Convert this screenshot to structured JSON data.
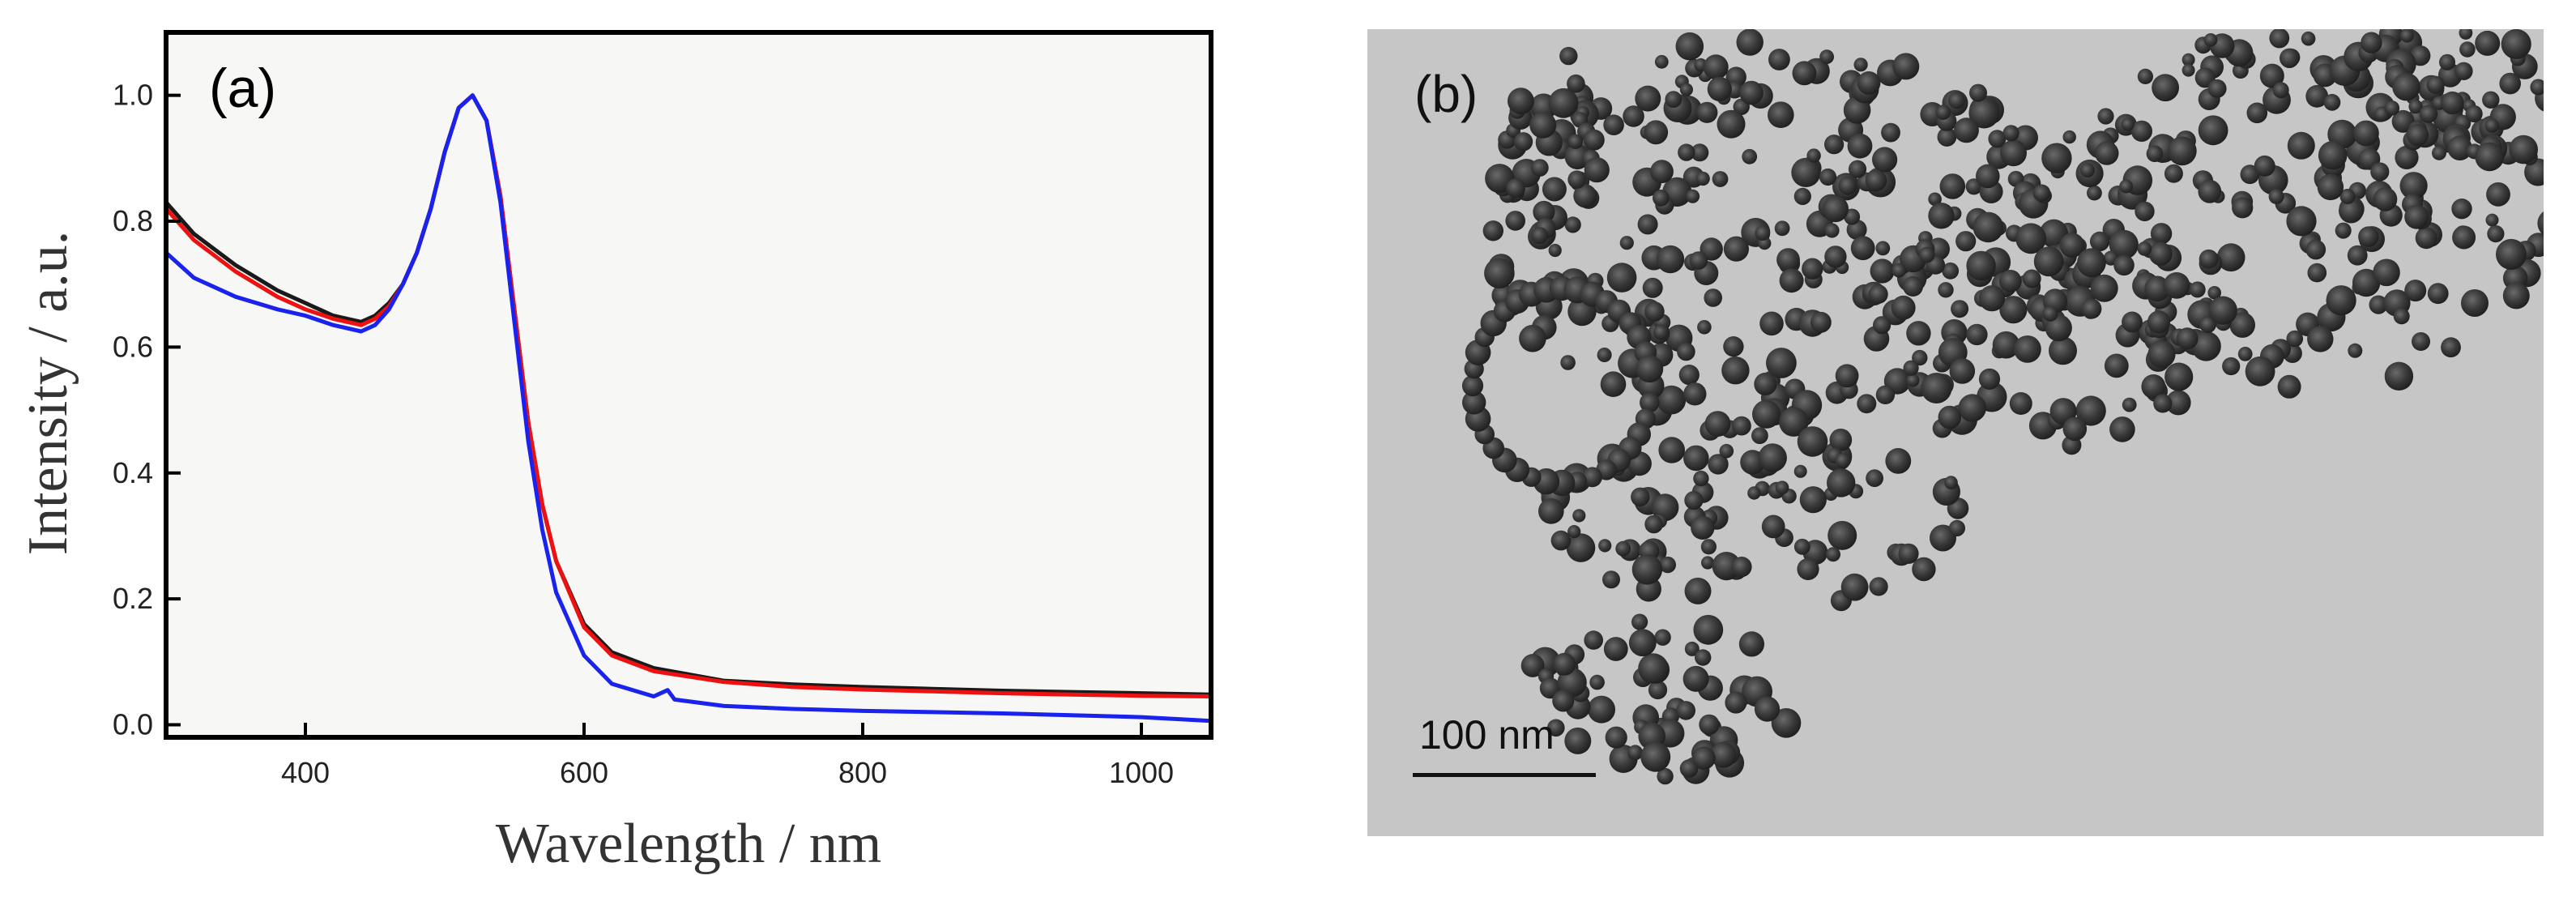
{
  "panel_a": {
    "label": "(a)",
    "xlabel": "Wavelength / nm",
    "ylabel": "Intensity / a.u."
  },
  "panel_b": {
    "label": "(b)",
    "scale_bar_label": "100 nm"
  },
  "colors": {
    "black_series": "#1a1a1a",
    "red_series": "#ee1111",
    "blue_series": "#1a22ee",
    "tem_background": "#c6c6c6",
    "particle": "#2a2a2a"
  },
  "chart_data": {
    "type": "line",
    "xlabel": "Wavelength / nm",
    "ylabel": "Intensity / a.u.",
    "xlim": [
      300,
      1050
    ],
    "ylim": [
      -0.02,
      1.1
    ],
    "xticks": [
      400,
      600,
      800,
      1000
    ],
    "yticks": [
      0.0,
      0.2,
      0.4,
      0.6,
      0.8,
      1.0
    ],
    "grid": false,
    "series": [
      {
        "color": "#1a1a1a",
        "x": [
          300,
          320,
          350,
          380,
          400,
          420,
          440,
          450,
          460,
          470,
          480,
          490,
          500,
          510,
          520,
          530,
          540,
          550,
          560,
          570,
          580,
          600,
          620,
          650,
          700,
          750,
          800,
          850,
          900,
          950,
          1000,
          1050
        ],
        "y": [
          0.83,
          0.78,
          0.73,
          0.69,
          0.67,
          0.65,
          0.64,
          0.65,
          0.67,
          0.7,
          0.75,
          0.82,
          0.91,
          0.98,
          1.0,
          0.96,
          0.84,
          0.66,
          0.48,
          0.35,
          0.26,
          0.16,
          0.115,
          0.09,
          0.07,
          0.064,
          0.06,
          0.057,
          0.054,
          0.052,
          0.05,
          0.048
        ]
      },
      {
        "color": "#ee1111",
        "x": [
          300,
          320,
          350,
          380,
          400,
          420,
          440,
          450,
          460,
          470,
          480,
          490,
          500,
          510,
          520,
          530,
          540,
          550,
          560,
          570,
          580,
          600,
          620,
          650,
          700,
          750,
          800,
          850,
          900,
          950,
          1000,
          1050
        ],
        "y": [
          0.82,
          0.77,
          0.72,
          0.68,
          0.66,
          0.645,
          0.635,
          0.645,
          0.665,
          0.7,
          0.75,
          0.82,
          0.91,
          0.98,
          1.0,
          0.96,
          0.84,
          0.66,
          0.48,
          0.35,
          0.26,
          0.155,
          0.11,
          0.085,
          0.068,
          0.06,
          0.056,
          0.053,
          0.05,
          0.048,
          0.046,
          0.045
        ]
      },
      {
        "color": "#1a22ee",
        "x": [
          300,
          320,
          350,
          380,
          400,
          420,
          440,
          450,
          460,
          470,
          480,
          490,
          500,
          510,
          520,
          530,
          540,
          550,
          560,
          570,
          580,
          600,
          620,
          650,
          660,
          665,
          700,
          750,
          800,
          850,
          900,
          950,
          1000,
          1050
        ],
        "y": [
          0.75,
          0.71,
          0.68,
          0.66,
          0.65,
          0.635,
          0.625,
          0.635,
          0.66,
          0.7,
          0.75,
          0.82,
          0.91,
          0.98,
          1.0,
          0.96,
          0.83,
          0.64,
          0.45,
          0.31,
          0.21,
          0.11,
          0.065,
          0.045,
          0.055,
          0.04,
          0.03,
          0.025,
          0.022,
          0.02,
          0.018,
          0.015,
          0.012,
          0.006
        ]
      }
    ]
  }
}
